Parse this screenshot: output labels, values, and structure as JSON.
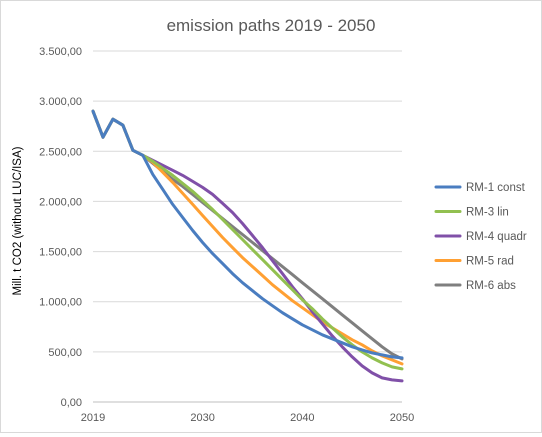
{
  "chart_data": {
    "type": "line",
    "title": "emission paths 2019 - 2050",
    "xlabel": "",
    "ylabel": "Mill. t CO2 (without LUC/ISA)",
    "xlim": [
      2019,
      2050
    ],
    "ylim": [
      0,
      3500
    ],
    "x_ticks": [
      "2019",
      "2030",
      "2040",
      "2050"
    ],
    "x_tick_values": [
      2019,
      2030,
      2040,
      2050
    ],
    "y_ticks": [
      "0,00",
      "500,00",
      "1.000,00",
      "1.500,00",
      "2.000,00",
      "2.500,00",
      "3.000,00",
      "3.500,00"
    ],
    "y_tick_values": [
      0,
      500,
      1000,
      1500,
      2000,
      2500,
      3000,
      3500
    ],
    "grid": "horizontal",
    "legend_position": "right",
    "x": [
      2019,
      2020,
      2021,
      2022,
      2023,
      2024,
      2025,
      2026,
      2027,
      2028,
      2029,
      2030,
      2031,
      2032,
      2033,
      2034,
      2035,
      2036,
      2037,
      2038,
      2039,
      2040,
      2041,
      2042,
      2043,
      2044,
      2045,
      2046,
      2047,
      2048,
      2049,
      2050
    ],
    "series": [
      {
        "name": "RM-6 abs",
        "color": "#7f7f7f",
        "values": [
          2900,
          2640,
          2820,
          2760,
          2510,
          2460,
          2380,
          2300,
          2220,
          2150,
          2070,
          1990,
          1910,
          1830,
          1750,
          1670,
          1590,
          1510,
          1430,
          1350,
          1270,
          1190,
          1110,
          1030,
          950,
          870,
          790,
          710,
          630,
          550,
          480,
          430
        ]
      },
      {
        "name": "RM-5 rad",
        "color": "#ffa033",
        "values": [
          2900,
          2640,
          2820,
          2760,
          2510,
          2460,
          2390,
          2290,
          2190,
          2080,
          1970,
          1860,
          1750,
          1640,
          1540,
          1440,
          1350,
          1260,
          1170,
          1090,
          1010,
          940,
          870,
          800,
          740,
          680,
          620,
          570,
          510,
          460,
          420,
          380
        ]
      },
      {
        "name": "RM-4 quadr",
        "color": "#8050a8",
        "values": [
          2900,
          2640,
          2820,
          2760,
          2510,
          2460,
          2410,
          2360,
          2310,
          2260,
          2200,
          2140,
          2070,
          1980,
          1890,
          1780,
          1660,
          1540,
          1410,
          1280,
          1150,
          1030,
          900,
          780,
          660,
          550,
          450,
          360,
          290,
          240,
          220,
          210
        ]
      },
      {
        "name": "RM-3 lin",
        "color": "#92c050",
        "values": [
          2900,
          2640,
          2820,
          2760,
          2510,
          2460,
          2400,
          2330,
          2260,
          2180,
          2100,
          2010,
          1920,
          1820,
          1720,
          1620,
          1520,
          1420,
          1320,
          1220,
          1120,
          1020,
          930,
          830,
          740,
          650,
          570,
          500,
          440,
          390,
          350,
          330
        ]
      },
      {
        "name": "RM-1 const",
        "color": "#4a7dc0",
        "values": [
          2900,
          2640,
          2820,
          2760,
          2510,
          2460,
          2270,
          2120,
          1970,
          1840,
          1710,
          1590,
          1480,
          1380,
          1280,
          1190,
          1110,
          1030,
          960,
          890,
          830,
          770,
          720,
          670,
          630,
          590,
          550,
          520,
          490,
          470,
          450,
          440
        ]
      }
    ],
    "legend": [
      {
        "name": "RM-1 const",
        "color": "#4a7dc0"
      },
      {
        "name": "RM-3 lin",
        "color": "#92c050"
      },
      {
        "name": "RM-4 quadr",
        "color": "#8050a8"
      },
      {
        "name": "RM-5 rad",
        "color": "#ffa033"
      },
      {
        "name": "RM-6 abs",
        "color": "#7f7f7f"
      }
    ]
  }
}
